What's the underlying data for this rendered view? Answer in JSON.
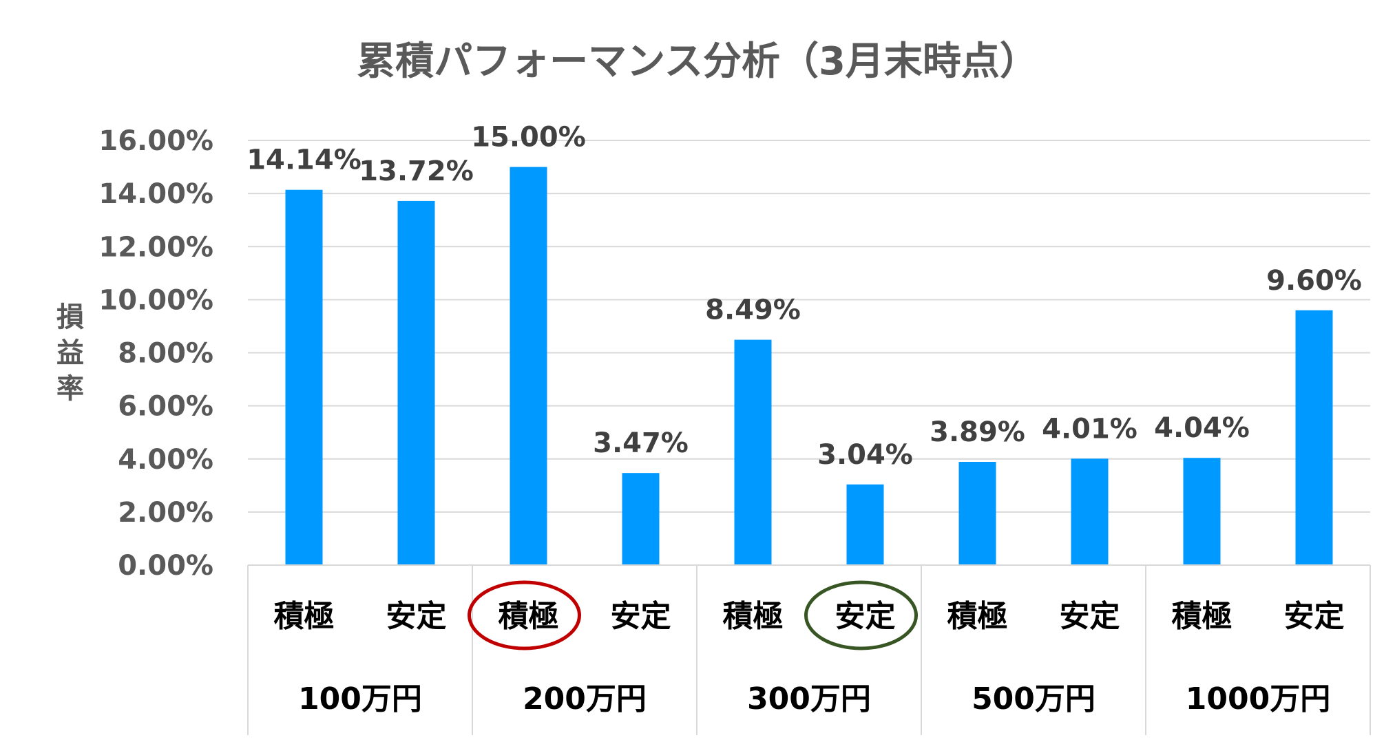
{
  "chart_data": {
    "type": "bar",
    "title": "累積パフォーマンス分析（3月末時点）",
    "ylabel": "損益率",
    "ylim": [
      0,
      16
    ],
    "yticks": [
      "0.00%",
      "2.00%",
      "4.00%",
      "6.00%",
      "8.00%",
      "10.00%",
      "12.00%",
      "14.00%",
      "16.00%"
    ],
    "grid": true,
    "bar_color": "#0099FF",
    "groups": [
      "100万円",
      "200万円",
      "300万円",
      "500万円",
      "1000万円"
    ],
    "categories": [
      "積極",
      "安定",
      "積極",
      "安定",
      "積極",
      "安定",
      "積極",
      "安定",
      "積極",
      "安定"
    ],
    "values": [
      14.14,
      13.72,
      15.0,
      3.47,
      8.49,
      3.04,
      3.89,
      4.01,
      4.04,
      9.6
    ],
    "data_labels": [
      "14.14%",
      "13.72%",
      "15.00%",
      "3.47%",
      "8.49%",
      "3.04%",
      "3.89%",
      "4.01%",
      "4.04%",
      "9.60%"
    ],
    "highlights": [
      {
        "category_index": 2,
        "color": "#C00000"
      },
      {
        "category_index": 5,
        "color": "#375623"
      }
    ]
  }
}
